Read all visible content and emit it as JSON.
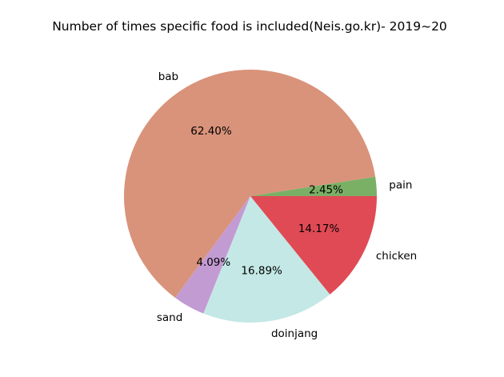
{
  "chart_data": {
    "type": "pie",
    "title": "Number of times specific food is included(Neis.go.kr)- 2019~20",
    "start_angle_deg": 0,
    "direction": "counterclockwise",
    "slices": [
      {
        "label": "pain",
        "pct_label": "2.45%",
        "value": 2.45,
        "color": "#7ab065"
      },
      {
        "label": "bab",
        "pct_label": "62.40%",
        "value": 62.4,
        "color": "#d9937a"
      },
      {
        "label": "sand",
        "pct_label": "4.09%",
        "value": 4.09,
        "color": "#c39bd3"
      },
      {
        "label": "doinjang",
        "pct_label": "16.89%",
        "value": 16.89,
        "color": "#c3e8e5"
      },
      {
        "label": "chicken",
        "pct_label": "14.17%",
        "value": 14.17,
        "color": "#e04a55"
      }
    ]
  }
}
